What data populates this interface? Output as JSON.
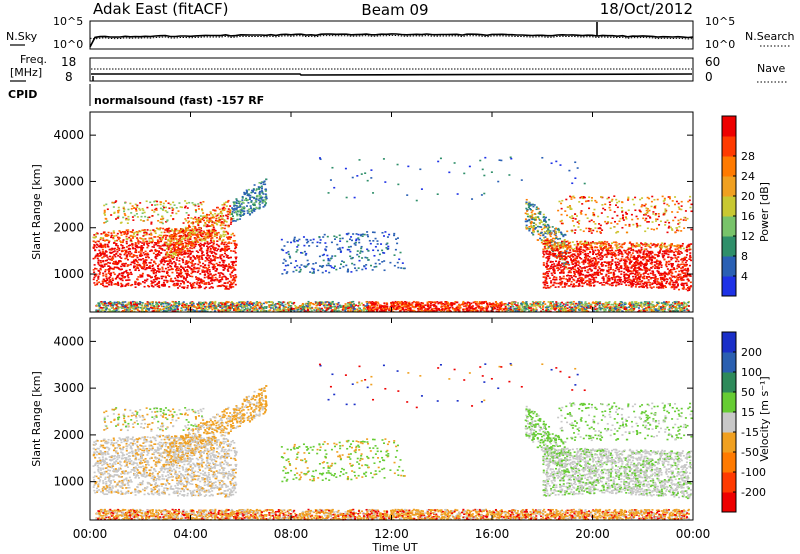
{
  "header": {
    "title": "Adak East (fitACF)",
    "beam": "Beam 09",
    "date": "18/Oct/2012"
  },
  "noise_panel": {
    "left_label": "N.Sky",
    "right_label": "N.Search",
    "left_ticks": [
      "10^5",
      "10^0"
    ],
    "right_ticks": [
      "10^5",
      "10^0"
    ]
  },
  "freq_panel": {
    "left_label_line1": "Freq.",
    "left_label_line2": "[MHz]",
    "right_label": "Nave",
    "left_ticks": [
      "18",
      "8"
    ],
    "right_ticks": [
      "60",
      "0"
    ],
    "cpid_label": "CPID",
    "cpid_text": "normalsound (fast) -157 RF"
  },
  "chart_data": [
    {
      "type": "heatmap",
      "name": "power",
      "ylabel": "Slant Range [km]",
      "y_ticks": [
        "1000",
        "2000",
        "3000",
        "4000"
      ],
      "ylim": [
        180,
        4500
      ],
      "colorbar_label": "Power [dB]",
      "colorbar_ticks": [
        "4",
        "8",
        "12",
        "16",
        "20",
        "24",
        "28"
      ],
      "colorbar_colors": [
        "#1e32e6",
        "#2a60b4",
        "#2f8f6a",
        "#78c36a",
        "#c8c832",
        "#f0a020",
        "#ff7a00",
        "#ff3a00",
        "#ee0000"
      ]
    },
    {
      "type": "heatmap",
      "name": "velocity",
      "ylabel": "Slant Range [km]",
      "y_ticks": [
        "1000",
        "2000",
        "3000",
        "4000"
      ],
      "ylim": [
        180,
        4500
      ],
      "colorbar_label": "Velocity [m s⁻¹]",
      "colorbar_ticks": [
        "200",
        "100",
        "50",
        "15",
        "-15",
        "-50",
        "-100",
        "-200"
      ],
      "colorbar_colors": [
        "#1a2fc8",
        "#2a5fb0",
        "#2e8a5a",
        "#66cc33",
        "#c8c8c8",
        "#f0a020",
        "#ff7a00",
        "#ff3a00",
        "#ee0000"
      ]
    }
  ],
  "x_axis": {
    "ticks": [
      "00:00",
      "04:00",
      "08:00",
      "12:00",
      "16:00",
      "20:00",
      "00:00"
    ],
    "label": "Time UT"
  },
  "colors": {
    "grey_scatter": "#c8c8c8",
    "red_scatter": "#ee1010"
  }
}
